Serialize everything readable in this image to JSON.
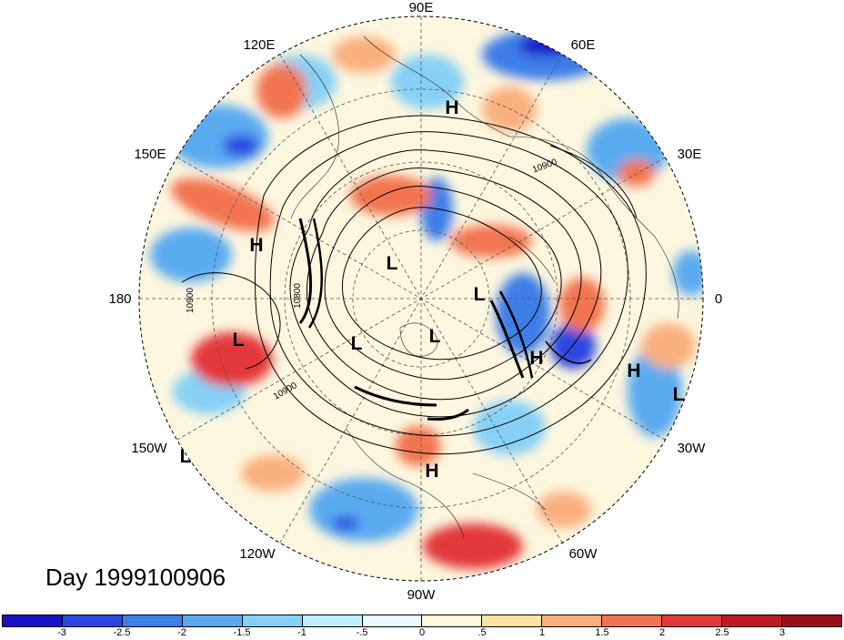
{
  "title": "Day 1999100906",
  "longitude_labels": [
    "90E",
    "60E",
    "30E",
    "0",
    "30W",
    "60W",
    "90W",
    "120W",
    "150W",
    "180",
    "150E",
    "120E"
  ],
  "pressure_systems": [
    {
      "type": "H"
    },
    {
      "type": "H"
    },
    {
      "type": "L"
    },
    {
      "type": "L"
    },
    {
      "type": "L"
    },
    {
      "type": "L"
    },
    {
      "type": "H"
    },
    {
      "type": "H"
    },
    {
      "type": "L"
    },
    {
      "type": "H"
    },
    {
      "type": "L"
    },
    {
      "type": "L"
    }
  ],
  "contour_labels": [
    "10800",
    "10900",
    "10900",
    "10900"
  ],
  "colorbar": {
    "labels": [
      "-3",
      "-2.5",
      "-2",
      "-1.5",
      "-1",
      "-.5",
      "0",
      ".5",
      "1",
      "1.5",
      "2",
      "2.5",
      "3"
    ],
    "colors": [
      "#1a12c6",
      "#2a46e0",
      "#3d7ee8",
      "#5aaaf0",
      "#86d0f6",
      "#bfeefc",
      "#e9fbfe",
      "#fefbdc",
      "#fde3a6",
      "#f9b07e",
      "#f2744f",
      "#e3373a",
      "#c01926",
      "#98101c"
    ]
  },
  "style": {
    "ocean_land_neutral": "#fefbe8",
    "contour_color": "#000000"
  }
}
